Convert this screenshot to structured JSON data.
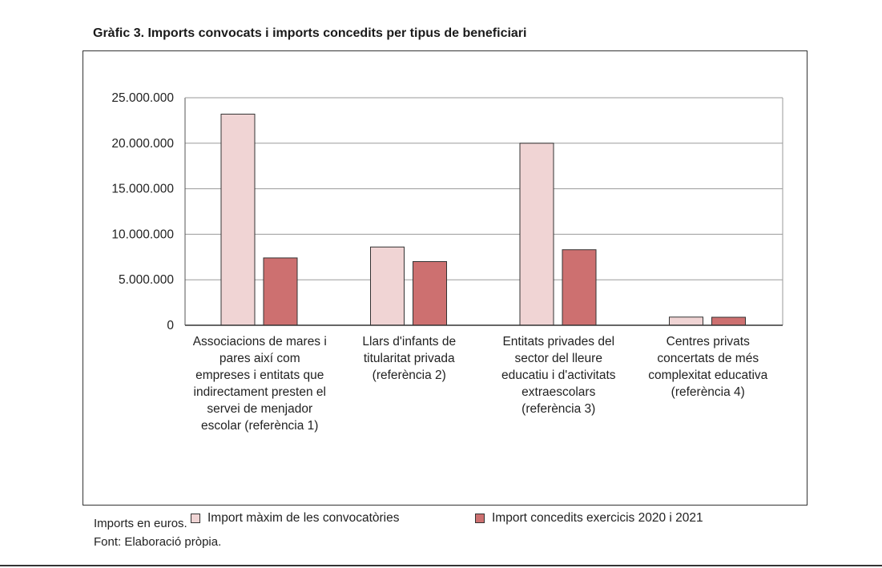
{
  "title": "Gràfic 3.  Imports convocats i imports concedits per tipus de beneficiari",
  "notes": {
    "units": "Imports en euros.",
    "source": "Font: Elaboració pròpia."
  },
  "chart_data": {
    "type": "bar",
    "title": "Gràfic 3.  Imports convocats i imports concedits per tipus de beneficiari",
    "categories": [
      "Associacions de mares i pares així com empreses i entitats que indirectament presten el servei de menjador escolar (referència 1)",
      "Llars d'infants de titularitat privada (referència 2)",
      "Entitats privades del sector del lleure educatiu i d'activitats extraescolars (referència 3)",
      "Centres privats concertats de més complexitat educativa (referència 4)"
    ],
    "category_lines": [
      [
        "Associacions de mares i",
        "pares així com",
        "empreses i entitats que",
        "indirectament presten el",
        "servei de menjador",
        "escolar (referència 1)"
      ],
      [
        "Llars d'infants de",
        "titularitat privada",
        "(referència 2)"
      ],
      [
        "Entitats privades del",
        "sector del lleure",
        "educatiu i d'activitats",
        "extraescolars",
        "(referència 3)"
      ],
      [
        "Centres privats",
        "concertats de més",
        "complexitat educativa",
        "(referència 4)"
      ]
    ],
    "series": [
      {
        "name": "Import màxim de les convocatòries",
        "color": "#f0d4d4",
        "values": [
          23200000,
          8600000,
          20000000,
          900000
        ]
      },
      {
        "name": "Import concedits exercicis 2020 i 2021",
        "color": "#cd7070",
        "values": [
          7400000,
          7000000,
          8300000,
          880000
        ]
      }
    ],
    "ylim": [
      0,
      25000000
    ],
    "yticks": [
      0,
      5000000,
      10000000,
      15000000,
      20000000,
      25000000
    ],
    "ytick_labels": [
      "0",
      "5.000.000",
      "10.000.000",
      "15.000.000",
      "20.000.000",
      "25.000.000"
    ],
    "grid": true,
    "legend_position": "bottom",
    "xlabel": "",
    "ylabel": ""
  }
}
